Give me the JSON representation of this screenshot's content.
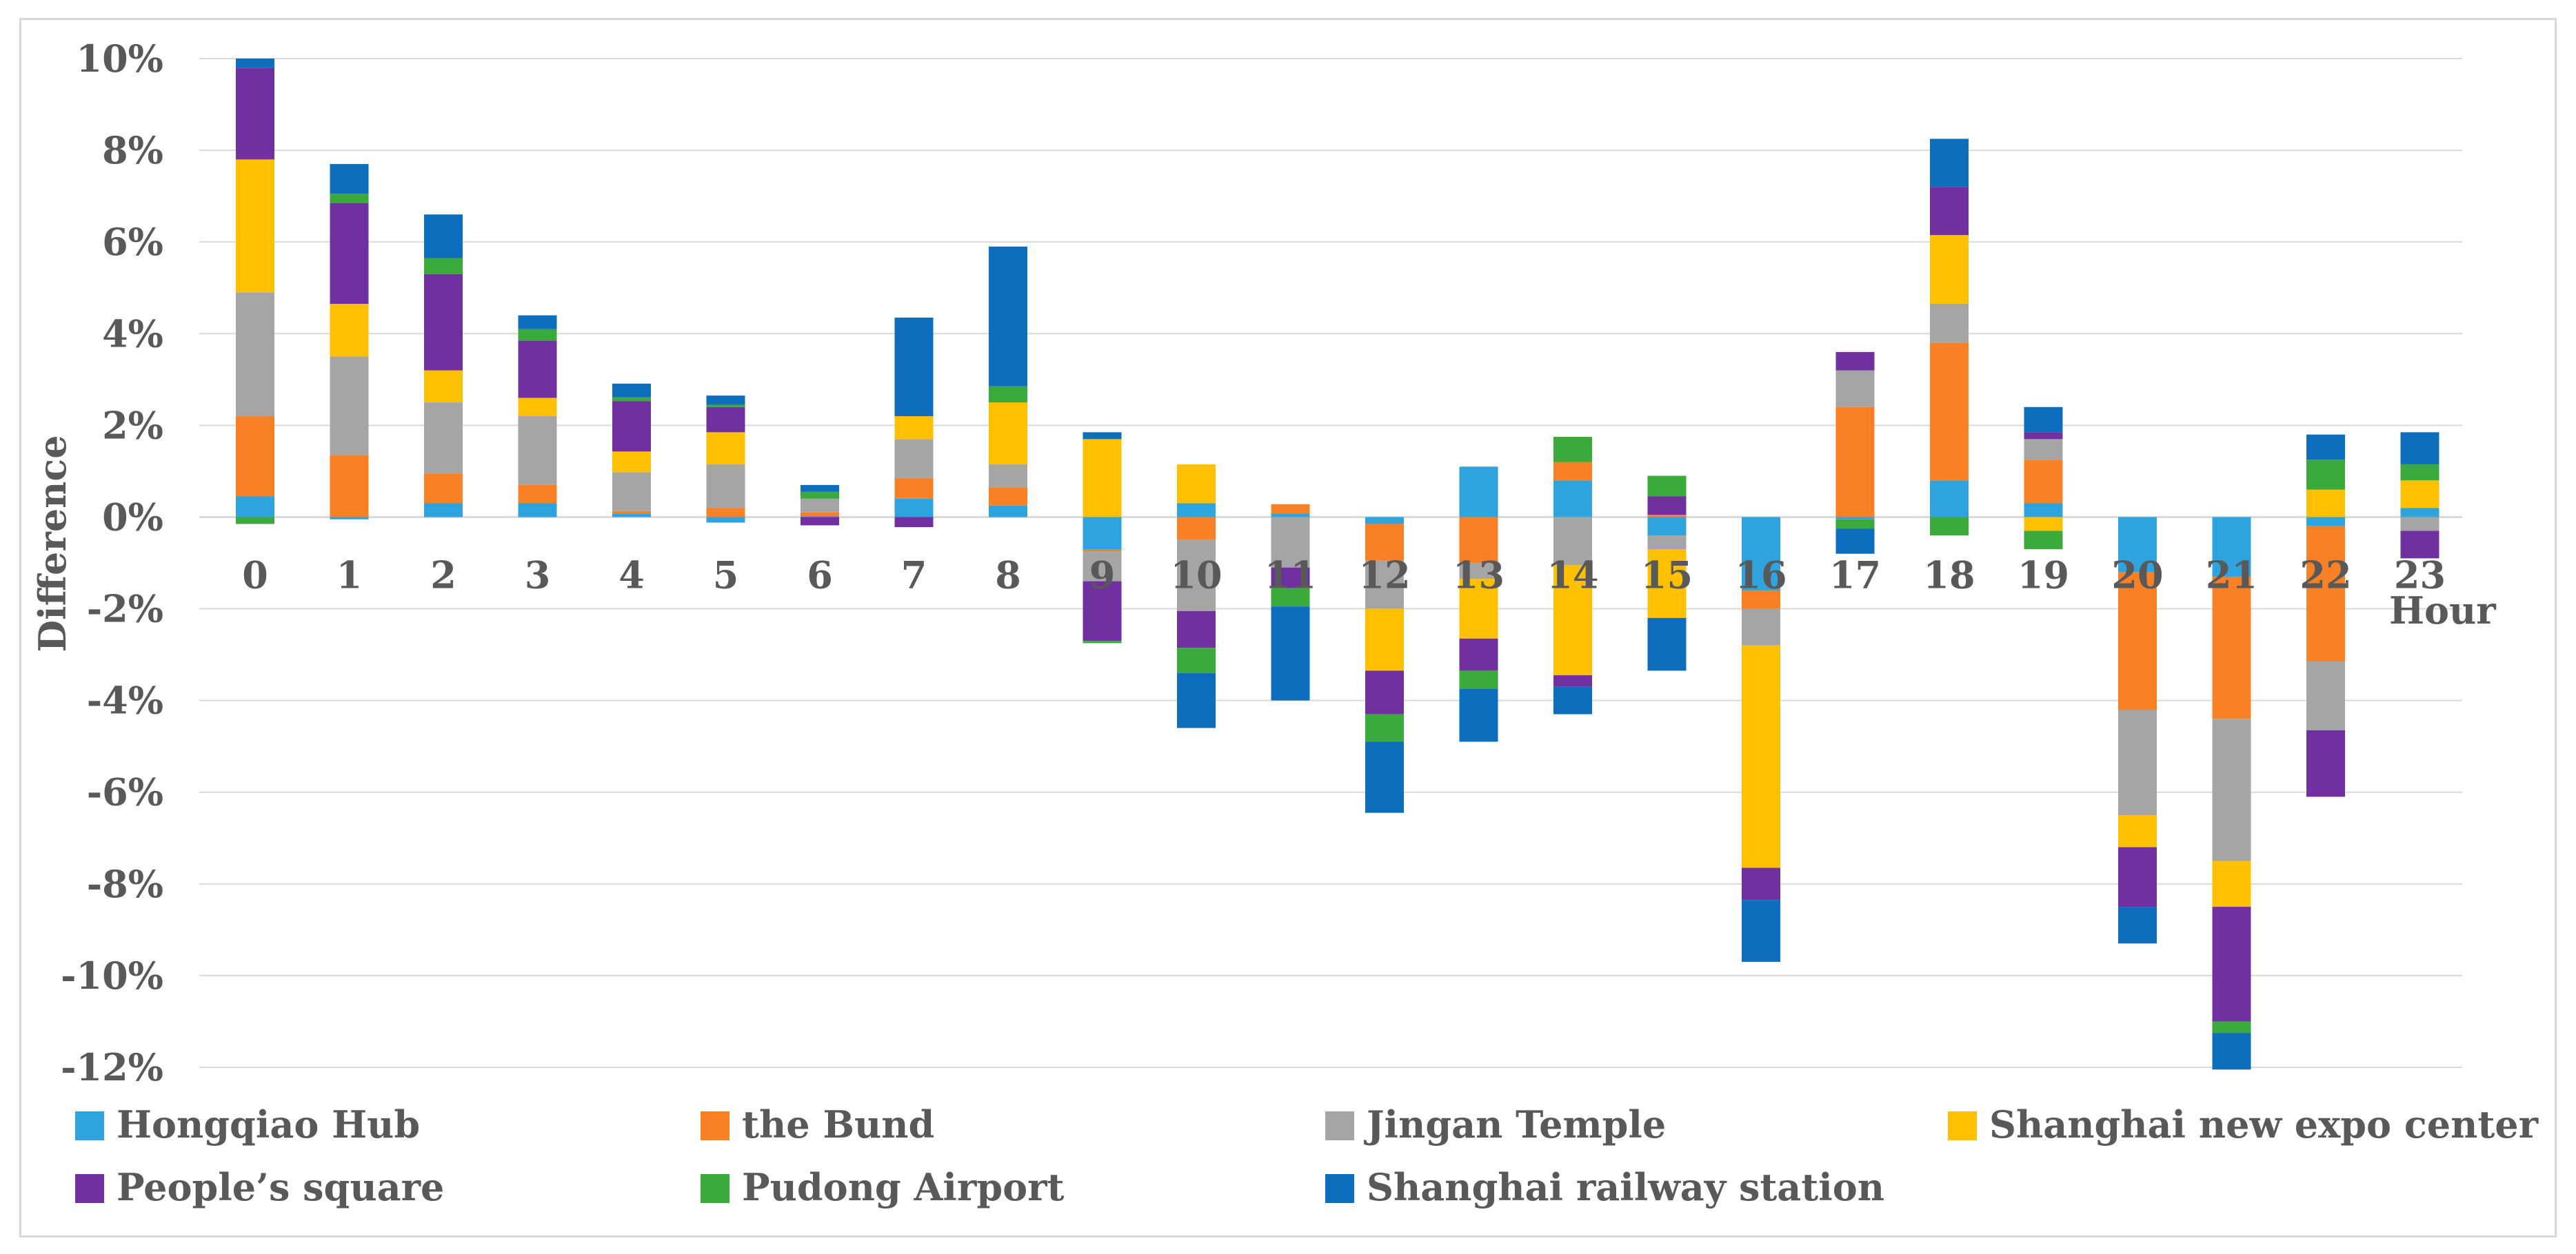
{
  "chart_data": {
    "type": "bar",
    "stacked": true,
    "title": "",
    "xlabel": "Hour",
    "ylabel": "Difference",
    "ylim": [
      -12,
      10
    ],
    "yticks": [
      "10%",
      "8%",
      "6%",
      "4%",
      "2%",
      "0%",
      "-2%",
      "-4%",
      "-6%",
      "-8%",
      "-10%",
      "-12%"
    ],
    "ytick_values": [
      10,
      8,
      6,
      4,
      2,
      0,
      -2,
      -4,
      -6,
      -8,
      -10,
      -12
    ],
    "grid": true,
    "legend_position": "bottom",
    "categories": [
      "0",
      "1",
      "2",
      "3",
      "4",
      "5",
      "6",
      "7",
      "8",
      "9",
      "10",
      "11",
      "12",
      "13",
      "14",
      "15",
      "16",
      "17",
      "18",
      "19",
      "20",
      "21",
      "22",
      "23"
    ],
    "series": [
      {
        "name": "Hongqiao Hub",
        "color": "#2ea3dd",
        "values": [
          0.45,
          -0.05,
          0.3,
          0.3,
          0.08,
          -0.12,
          0.02,
          0.4,
          0.25,
          -0.7,
          0.3,
          0.08,
          -0.15,
          1.1,
          0.8,
          -0.4,
          -1.6,
          -0.05,
          0.8,
          0.3,
          -1.2,
          -1.3,
          -0.2,
          0.2
        ]
      },
      {
        "name": "the Bund",
        "color": "#f98125",
        "values": [
          1.75,
          1.35,
          0.65,
          0.4,
          0.05,
          0.2,
          0.08,
          0.45,
          0.4,
          -0.05,
          -0.5,
          0.2,
          -0.8,
          -1.0,
          0.4,
          0.05,
          -0.4,
          2.4,
          3.0,
          0.95,
          -3.0,
          -3.1,
          -2.95,
          0.0
        ]
      },
      {
        "name": "Jingan Temple",
        "color": "#a5a5a5",
        "values": [
          2.7,
          2.15,
          1.55,
          1.5,
          0.85,
          0.95,
          0.3,
          0.85,
          0.5,
          -0.65,
          -1.55,
          -1.1,
          -1.05,
          -0.35,
          -1.05,
          -0.3,
          -0.8,
          0.8,
          0.85,
          0.45,
          -2.3,
          -3.1,
          -1.5,
          -0.3
        ]
      },
      {
        "name": "Shanghai new expo center",
        "color": "#ffc000",
        "values": [
          2.9,
          1.15,
          0.7,
          0.4,
          0.45,
          0.7,
          0.0,
          0.5,
          1.35,
          1.7,
          0.85,
          0.0,
          -1.35,
          -1.3,
          -2.4,
          -1.5,
          -4.85,
          0.0,
          1.5,
          -0.3,
          -0.7,
          -1.0,
          0.6,
          0.6
        ]
      },
      {
        "name": "People’s square",
        "color": "#7030a0",
        "values": [
          2.0,
          2.2,
          2.1,
          1.25,
          1.1,
          0.55,
          -0.18,
          -0.22,
          0.0,
          -1.3,
          -0.8,
          -0.45,
          -0.95,
          -0.7,
          -0.25,
          0.4,
          -0.7,
          0.4,
          1.05,
          0.15,
          -1.3,
          -2.5,
          -1.45,
          -0.6
        ]
      },
      {
        "name": "Pudong Airport",
        "color": "#3aab3a",
        "values": [
          -0.15,
          0.2,
          0.35,
          0.25,
          0.08,
          0.05,
          0.15,
          0.0,
          0.35,
          -0.05,
          -0.55,
          -0.4,
          -0.6,
          -0.4,
          0.55,
          0.45,
          0.0,
          -0.2,
          -0.4,
          -0.4,
          0.0,
          -0.25,
          0.65,
          0.35
        ]
      },
      {
        "name": "Shanghai railway station",
        "color": "#0d6ebd",
        "values": [
          0.2,
          0.65,
          0.95,
          0.3,
          0.3,
          0.2,
          0.15,
          2.15,
          3.05,
          0.15,
          -1.2,
          -2.05,
          -1.55,
          -1.15,
          -0.6,
          -1.15,
          -1.35,
          -0.55,
          1.05,
          0.55,
          -0.8,
          -0.8,
          0.55,
          0.7
        ]
      }
    ]
  }
}
